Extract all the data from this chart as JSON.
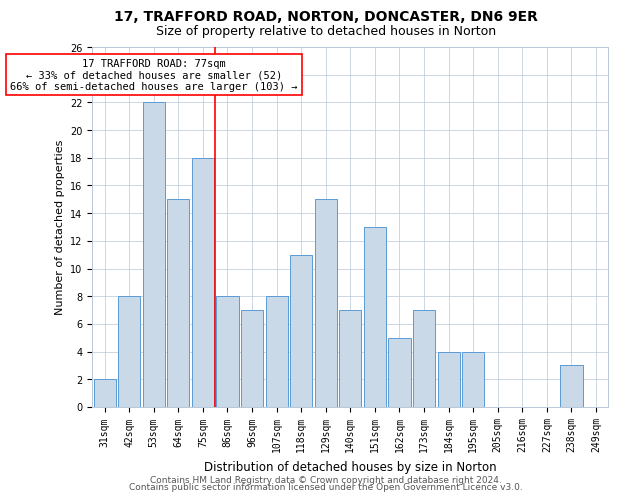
{
  "title1": "17, TRAFFORD ROAD, NORTON, DONCASTER, DN6 9ER",
  "title2": "Size of property relative to detached houses in Norton",
  "xlabel": "Distribution of detached houses by size in Norton",
  "ylabel": "Number of detached properties",
  "categories": [
    "31sqm",
    "42sqm",
    "53sqm",
    "64sqm",
    "75sqm",
    "86sqm",
    "96sqm",
    "107sqm",
    "118sqm",
    "129sqm",
    "140sqm",
    "151sqm",
    "162sqm",
    "173sqm",
    "184sqm",
    "195sqm",
    "205sqm",
    "216sqm",
    "227sqm",
    "238sqm",
    "249sqm"
  ],
  "values": [
    2,
    8,
    22,
    15,
    18,
    8,
    7,
    8,
    11,
    15,
    7,
    13,
    5,
    7,
    4,
    4,
    0,
    0,
    0,
    3,
    0
  ],
  "bar_color": "#c9d9e8",
  "bar_edge_color": "#5b9bd5",
  "annotation_title": "17 TRAFFORD ROAD: 77sqm",
  "annotation_line1": "← 33% of detached houses are smaller (52)",
  "annotation_line2": "66% of semi-detached houses are larger (103) →",
  "ylim": [
    0,
    26
  ],
  "yticks": [
    0,
    2,
    4,
    6,
    8,
    10,
    12,
    14,
    16,
    18,
    20,
    22,
    24,
    26
  ],
  "footer1": "Contains HM Land Registry data © Crown copyright and database right 2024.",
  "footer2": "Contains public sector information licensed under the Open Government Licence v3.0.",
  "title1_fontsize": 10,
  "title2_fontsize": 9,
  "xlabel_fontsize": 8.5,
  "ylabel_fontsize": 8,
  "tick_fontsize": 7,
  "annotation_fontsize": 7.5,
  "footer_fontsize": 6.5,
  "red_line_x": 4.5
}
